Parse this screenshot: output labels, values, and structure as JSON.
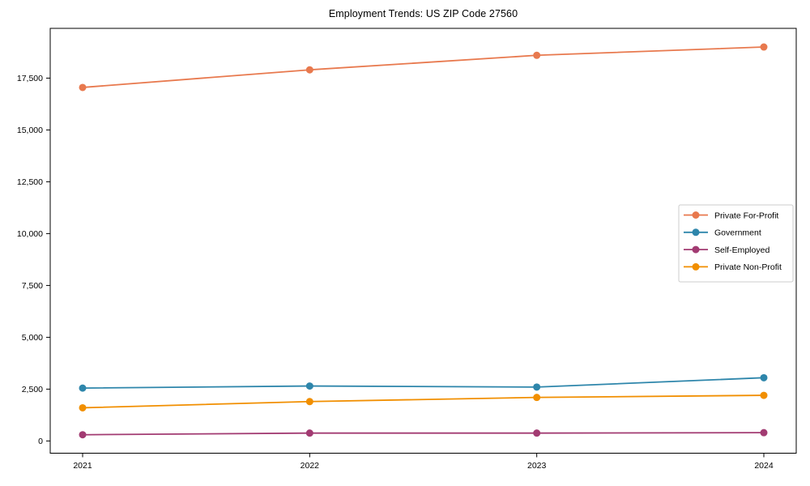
{
  "figure": {
    "background": "#ffffff",
    "frame_color": "#000000",
    "text_color": "#000000",
    "legend_border_color": "#cccccc"
  },
  "chart_data": {
    "type": "line",
    "title": "Employment Trends: US ZIP Code 27560",
    "categories": [
      "2021",
      "2022",
      "2023",
      "2024"
    ],
    "series": [
      {
        "name": "Private For-Profit",
        "color": "#e8794e",
        "values": [
          17050,
          17900,
          18600,
          19000
        ]
      },
      {
        "name": "Government",
        "color": "#2e86ab",
        "values": [
          2550,
          2650,
          2600,
          3050
        ]
      },
      {
        "name": "Self-Employed",
        "color": "#a23b72",
        "values": [
          300,
          380,
          380,
          400
        ]
      },
      {
        "name": "Private Non-Profit",
        "color": "#f18f01",
        "values": [
          1600,
          1900,
          2100,
          2200
        ]
      }
    ],
    "xlabel": "",
    "ylabel": "",
    "yticks": [
      0,
      2500,
      5000,
      7500,
      10000,
      12500,
      15000,
      17500
    ],
    "ylim": [
      -590,
      19900
    ],
    "grid": false,
    "marker": "o",
    "legend_position": "center right"
  }
}
